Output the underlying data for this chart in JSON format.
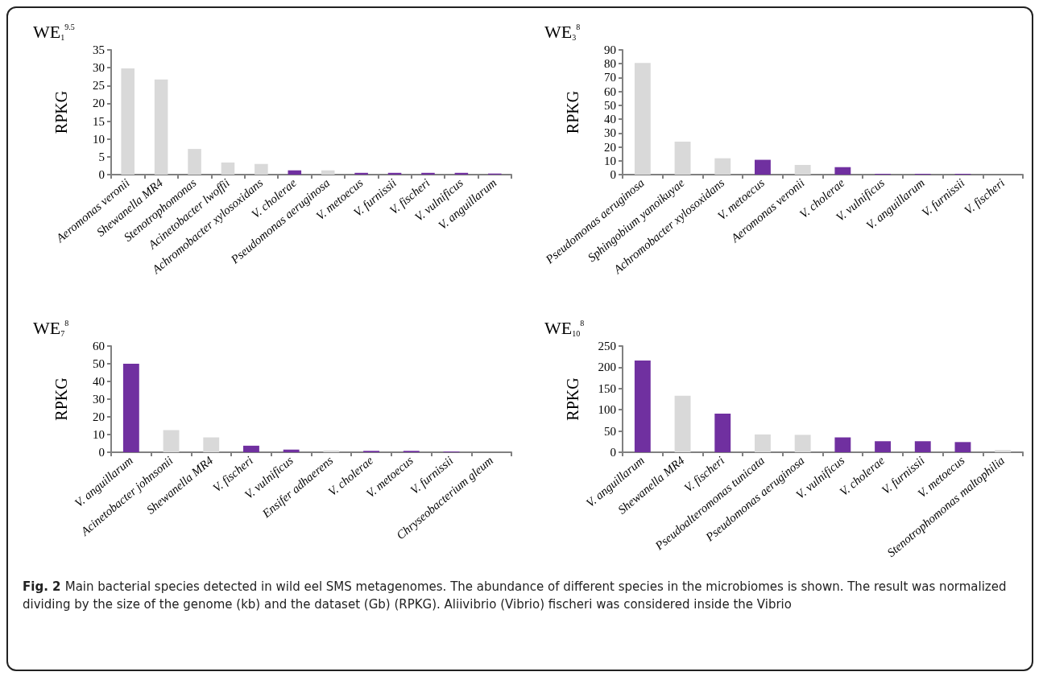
{
  "chart_data": [
    {
      "type": "bar",
      "title": "WE$_{1}$$^{9.5}$",
      "ylabel": "RPKG",
      "categories": [
        "Aeromonas veronii",
        "Shewanella MR4",
        "Stenotrophomonas",
        "Acinetobacter lwoffii",
        "Achromobacter xylosoxidans",
        "V. cholerae",
        "Pseudomonas aeruginosa",
        "V. metoecus",
        "V. furnissii",
        "V. fischeri",
        "V. vulnificus",
        "V. anguillarum"
      ],
      "values": [
        29.8,
        26.7,
        7.2,
        3.4,
        3.0,
        1.2,
        1.2,
        0.5,
        0.5,
        0.5,
        0.5,
        0.3
      ],
      "colors": [
        "#d9d9d9",
        "#d9d9d9",
        "#d9d9d9",
        "#d9d9d9",
        "#d9d9d9",
        "#7030a0",
        "#d9d9d9",
        "#7030a0",
        "#7030a0",
        "#7030a0",
        "#7030a0",
        "#7030a0"
      ],
      "ylim": [
        0,
        35
      ],
      "yticks": [
        0,
        5,
        10,
        15,
        20,
        25,
        30,
        35
      ],
      "grid": false
    },
    {
      "type": "bar",
      "title": "WE$_{3}$$^{8}$",
      "ylabel": "RPKG",
      "categories": [
        "Pseudomonas aeruginosa",
        "Sphingobium yanoikuyae",
        "Achromobacter xylosoxidans",
        "V. metoecus",
        "Aeromonas veronii",
        "V. cholerae",
        "V. vulnificus",
        "V. anguillarum",
        "V. furnissii",
        "V. fischeri"
      ],
      "values": [
        80.5,
        23.8,
        11.8,
        10.7,
        7.0,
        5.4,
        0.6,
        0.6,
        0.6,
        null
      ],
      "colors": [
        "#d9d9d9",
        "#d9d9d9",
        "#d9d9d9",
        "#7030a0",
        "#d9d9d9",
        "#7030a0",
        "#7030a0",
        "#7030a0",
        "#7030a0",
        "#7030a0"
      ],
      "ylim": [
        0,
        90
      ],
      "yticks": [
        0,
        10,
        20,
        30,
        40,
        50,
        60,
        70,
        80,
        90
      ],
      "grid": false
    },
    {
      "type": "bar",
      "title": "WE$_{7}$$^{8}$",
      "ylabel": "RPKG",
      "categories": [
        "V. anguillarum",
        "Acinetobacter johnsonii",
        "Shewanella MR4",
        "V. fischeri",
        "V. vulnificus",
        "Ensifer adhaerens",
        "V. cholerae",
        "V. metoecus",
        "V. furnissii",
        "Chryseobacterium gleum"
      ],
      "values": [
        50,
        12.5,
        8.4,
        3.7,
        1.5,
        1.0,
        0.8,
        0.8,
        0.4,
        null
      ],
      "colors": [
        "#7030a0",
        "#d9d9d9",
        "#d9d9d9",
        "#7030a0",
        "#7030a0",
        "#d9d9d9",
        "#7030a0",
        "#7030a0",
        "#7030a0",
        "#d9d9d9"
      ],
      "ylim": [
        0,
        60
      ],
      "yticks": [
        0,
        10,
        20,
        30,
        40,
        50,
        60
      ],
      "grid": false
    },
    {
      "type": "bar",
      "title": "WE$_{10}$$^{8}$",
      "ylabel": "RPKG",
      "categories": [
        "V. anguillarum",
        "Shewanella MR4",
        "V. fischeri",
        "Pseudoalteromonas tunicata",
        "Pseudomonas aeruginosa",
        "V. vulnificus",
        "V. cholerae",
        "V. furnissii",
        "V. metoecus",
        "Stenotrophomonas maltophilia"
      ],
      "values": [
        216,
        133,
        91,
        42,
        41,
        35,
        26,
        26,
        24,
        5
      ],
      "colors": [
        "#7030a0",
        "#d9d9d9",
        "#7030a0",
        "#d9d9d9",
        "#d9d9d9",
        "#7030a0",
        "#7030a0",
        "#7030a0",
        "#7030a0",
        "#d9d9d9"
      ],
      "ylim": [
        0,
        250
      ],
      "yticks": [
        0,
        50,
        100,
        150,
        200,
        250
      ],
      "grid": false,
      "annotations": [
        "Fig. 2",
        "Main bacterial species detected in wild eel SMS metagenomes. The abundance of different species in the microbiomes is shown. The result was normalized dividing by the size of the genome (kb) and the dataset (Gb) (RPKG). Aliivibrio (Vibrio) fischeri was considered inside the Vibrio"
      ]
    }
  ]
}
